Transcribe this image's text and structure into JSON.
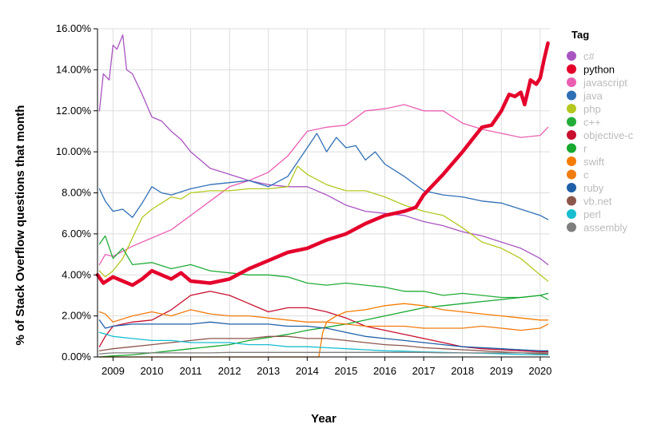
{
  "chart_data": {
    "type": "line",
    "title": "",
    "xlabel": "Year",
    "ylabel": "% of Stack Overflow questions that month",
    "xlim": [
      2008.6,
      2020.25
    ],
    "ylim": [
      0,
      16
    ],
    "x_ticks": [
      2009,
      2010,
      2011,
      2012,
      2013,
      2014,
      2015,
      2016,
      2017,
      2018,
      2019,
      2020
    ],
    "x_tick_labels": [
      "2009",
      "2010",
      "2011",
      "2012",
      "2013",
      "2014",
      "2015",
      "2016",
      "2017",
      "2018",
      "2019",
      "2020"
    ],
    "y_ticks": [
      0,
      2,
      4,
      6,
      8,
      10,
      12,
      14,
      16
    ],
    "y_tick_labels": [
      "0.00%",
      "2.00%",
      "4.00%",
      "6.00%",
      "8.00%",
      "10.00%",
      "12.00%",
      "14.00%",
      "16.00%"
    ],
    "grid": true,
    "legend": {
      "title": "Tag",
      "position": "right",
      "highlighted": "python"
    },
    "series": [
      {
        "name": "c#",
        "color": "#a855c0",
        "x": [
          2008.65,
          2008.75,
          2008.9,
          2009.0,
          2009.1,
          2009.25,
          2009.35,
          2009.5,
          2009.75,
          2010.0,
          2010.25,
          2010.5,
          2010.75,
          2011.0,
          2011.5,
          2012.0,
          2012.5,
          2013.0,
          2013.5,
          2014.0,
          2014.5,
          2015.0,
          2015.5,
          2016.0,
          2016.5,
          2017.0,
          2017.5,
          2018.0,
          2018.5,
          2019.0,
          2019.5,
          2020.0,
          2020.2
        ],
        "values": [
          12.0,
          13.8,
          13.5,
          15.2,
          15.0,
          15.7,
          14.0,
          13.8,
          12.8,
          11.7,
          11.5,
          11.0,
          10.6,
          10.0,
          9.2,
          8.9,
          8.6,
          8.4,
          8.3,
          8.3,
          7.9,
          7.4,
          7.1,
          7.0,
          6.9,
          6.6,
          6.4,
          6.1,
          5.9,
          5.6,
          5.3,
          4.8,
          4.5
        ]
      },
      {
        "name": "python",
        "color": "#e4002b",
        "x": [
          2008.6,
          2008.75,
          2009.0,
          2009.25,
          2009.5,
          2009.75,
          2010.0,
          2010.25,
          2010.5,
          2010.75,
          2011.0,
          2011.5,
          2012.0,
          2012.5,
          2013.0,
          2013.5,
          2014.0,
          2014.5,
          2015.0,
          2015.5,
          2016.0,
          2016.5,
          2016.8,
          2017.0,
          2017.5,
          2018.0,
          2018.25,
          2018.5,
          2018.75,
          2019.0,
          2019.2,
          2019.35,
          2019.5,
          2019.6,
          2019.75,
          2019.9,
          2020.0,
          2020.1,
          2020.2
        ],
        "values": [
          4.0,
          3.6,
          3.9,
          3.7,
          3.5,
          3.8,
          4.2,
          4.0,
          3.8,
          4.1,
          3.7,
          3.6,
          3.8,
          4.3,
          4.7,
          5.1,
          5.3,
          5.7,
          6.0,
          6.5,
          6.9,
          7.1,
          7.3,
          7.9,
          8.9,
          10.0,
          10.6,
          11.2,
          11.3,
          12.0,
          12.8,
          12.7,
          12.9,
          12.3,
          13.5,
          13.3,
          13.6,
          14.5,
          15.3
        ]
      },
      {
        "name": "javascript",
        "color": "#ea5fb2",
        "x": [
          2008.65,
          2008.8,
          2009.0,
          2009.5,
          2010.0,
          2010.5,
          2011.0,
          2011.5,
          2012.0,
          2012.5,
          2013.0,
          2013.5,
          2014.0,
          2014.5,
          2015.0,
          2015.5,
          2016.0,
          2016.5,
          2017.0,
          2017.5,
          2018.0,
          2018.5,
          2019.0,
          2019.5,
          2020.0,
          2020.2
        ],
        "values": [
          4.5,
          5.0,
          4.9,
          5.4,
          5.8,
          6.2,
          6.9,
          7.6,
          8.3,
          8.6,
          9.0,
          9.8,
          11.0,
          11.2,
          11.3,
          12.0,
          12.1,
          12.3,
          12.0,
          12.0,
          11.4,
          11.1,
          10.9,
          10.7,
          10.8,
          11.2
        ]
      },
      {
        "name": "java",
        "color": "#2f6fb6",
        "x": [
          2008.65,
          2008.8,
          2009.0,
          2009.25,
          2009.5,
          2009.75,
          2010.0,
          2010.25,
          2010.5,
          2011.0,
          2011.5,
          2012.0,
          2012.5,
          2013.0,
          2013.5,
          2013.75,
          2014.0,
          2014.25,
          2014.5,
          2014.75,
          2015.0,
          2015.25,
          2015.5,
          2015.75,
          2016.0,
          2016.5,
          2017.0,
          2017.5,
          2018.0,
          2018.5,
          2019.0,
          2019.5,
          2020.0,
          2020.2
        ],
        "values": [
          8.2,
          7.6,
          7.1,
          7.2,
          6.8,
          7.5,
          8.3,
          8.0,
          7.9,
          8.2,
          8.4,
          8.5,
          8.6,
          8.3,
          8.8,
          9.5,
          10.2,
          10.9,
          10.0,
          10.7,
          10.2,
          10.3,
          9.6,
          10.0,
          9.4,
          8.8,
          8.1,
          7.9,
          7.8,
          7.6,
          7.5,
          7.2,
          6.9,
          6.7
        ]
      },
      {
        "name": "php",
        "color": "#b5c81f",
        "x": [
          2008.65,
          2008.8,
          2009.0,
          2009.25,
          2009.5,
          2009.75,
          2010.0,
          2010.25,
          2010.5,
          2010.75,
          2011.0,
          2011.5,
          2012.0,
          2012.5,
          2013.0,
          2013.5,
          2013.75,
          2014.0,
          2014.5,
          2015.0,
          2015.5,
          2016.0,
          2016.5,
          2017.0,
          2017.5,
          2018.0,
          2018.5,
          2019.0,
          2019.5,
          2020.0,
          2020.2
        ],
        "values": [
          4.2,
          3.9,
          4.2,
          4.8,
          5.8,
          6.8,
          7.2,
          7.5,
          7.8,
          7.7,
          8.0,
          8.1,
          8.1,
          8.2,
          8.2,
          8.3,
          9.3,
          8.9,
          8.4,
          8.1,
          8.1,
          7.8,
          7.4,
          7.1,
          6.9,
          6.3,
          5.6,
          5.3,
          4.8,
          4.0,
          3.7
        ]
      },
      {
        "name": "c++",
        "color": "#22ac38",
        "x": [
          2008.65,
          2008.8,
          2009.0,
          2009.25,
          2009.5,
          2010.0,
          2010.5,
          2011.0,
          2011.5,
          2012.0,
          2012.5,
          2013.0,
          2013.5,
          2014.0,
          2014.5,
          2015.0,
          2015.5,
          2016.0,
          2016.5,
          2017.0,
          2017.5,
          2018.0,
          2018.5,
          2019.0,
          2019.5,
          2020.0,
          2020.2
        ],
        "values": [
          5.5,
          5.9,
          4.8,
          5.3,
          4.5,
          4.6,
          4.3,
          4.5,
          4.2,
          4.1,
          4.0,
          4.0,
          3.9,
          3.6,
          3.5,
          3.6,
          3.5,
          3.4,
          3.2,
          3.2,
          3.0,
          3.1,
          3.0,
          2.9,
          2.9,
          3.0,
          2.8
        ]
      },
      {
        "name": "objective-c",
        "color": "#c8102e",
        "x": [
          2008.65,
          2008.8,
          2009.0,
          2009.5,
          2010.0,
          2010.5,
          2011.0,
          2011.5,
          2012.0,
          2012.5,
          2013.0,
          2013.5,
          2014.0,
          2014.5,
          2015.0,
          2015.5,
          2016.0,
          2016.5,
          2017.0,
          2017.5,
          2018.0,
          2018.5,
          2019.0,
          2019.5,
          2020.0,
          2020.2
        ],
        "values": [
          0.5,
          1.0,
          1.5,
          1.7,
          1.8,
          2.3,
          3.0,
          3.2,
          3.0,
          2.6,
          2.2,
          2.4,
          2.4,
          2.2,
          1.9,
          1.5,
          1.3,
          1.1,
          0.9,
          0.7,
          0.5,
          0.4,
          0.35,
          0.3,
          0.25,
          0.25
        ]
      },
      {
        "name": "r",
        "color": "#17a82f",
        "x": [
          2008.65,
          2009.0,
          2009.5,
          2010.0,
          2010.5,
          2011.0,
          2011.5,
          2012.0,
          2012.5,
          2013.0,
          2013.5,
          2014.0,
          2014.5,
          2015.0,
          2015.5,
          2016.0,
          2016.5,
          2017.0,
          2017.5,
          2018.0,
          2018.5,
          2019.0,
          2019.5,
          2020.0,
          2020.2
        ],
        "values": [
          0.0,
          0.05,
          0.1,
          0.2,
          0.3,
          0.4,
          0.5,
          0.6,
          0.8,
          0.95,
          1.1,
          1.3,
          1.45,
          1.6,
          1.8,
          2.0,
          2.2,
          2.4,
          2.5,
          2.6,
          2.7,
          2.8,
          2.9,
          3.0,
          3.1
        ]
      },
      {
        "name": "swift",
        "color": "#f57c00",
        "x": [
          2008.65,
          2014.3,
          2014.4,
          2014.5,
          2014.75,
          2015.0,
          2015.5,
          2016.0,
          2016.5,
          2017.0,
          2017.5,
          2018.0,
          2018.5,
          2019.0,
          2019.5,
          2020.0,
          2020.2
        ],
        "values": [
          0.0,
          0.0,
          1.2,
          1.7,
          2.0,
          2.2,
          2.3,
          2.5,
          2.6,
          2.5,
          2.3,
          2.2,
          2.1,
          2.0,
          1.9,
          1.8,
          1.8
        ]
      },
      {
        "name": "c",
        "color": "#f07c10",
        "x": [
          2008.65,
          2008.8,
          2009.0,
          2009.5,
          2010.0,
          2010.5,
          2011.0,
          2011.5,
          2012.0,
          2012.5,
          2013.0,
          2013.5,
          2014.0,
          2014.5,
          2015.0,
          2015.5,
          2016.0,
          2016.5,
          2017.0,
          2017.5,
          2018.0,
          2018.5,
          2019.0,
          2019.5,
          2020.0,
          2020.2
        ],
        "values": [
          2.2,
          2.1,
          1.7,
          2.0,
          2.2,
          2.0,
          2.3,
          2.1,
          2.0,
          2.0,
          1.9,
          1.8,
          1.7,
          1.7,
          1.6,
          1.5,
          1.5,
          1.5,
          1.4,
          1.4,
          1.4,
          1.5,
          1.4,
          1.3,
          1.4,
          1.6
        ]
      },
      {
        "name": "ruby",
        "color": "#1f5fa8",
        "x": [
          2008.65,
          2008.8,
          2009.0,
          2009.5,
          2010.0,
          2010.5,
          2011.0,
          2011.5,
          2012.0,
          2012.5,
          2013.0,
          2013.5,
          2014.0,
          2014.5,
          2015.0,
          2015.5,
          2016.0,
          2016.5,
          2017.0,
          2017.5,
          2018.0,
          2018.5,
          2019.0,
          2019.5,
          2020.0,
          2020.2
        ],
        "values": [
          1.8,
          1.4,
          1.5,
          1.6,
          1.6,
          1.6,
          1.6,
          1.7,
          1.6,
          1.6,
          1.6,
          1.5,
          1.5,
          1.4,
          1.2,
          1.0,
          0.9,
          0.8,
          0.7,
          0.6,
          0.5,
          0.45,
          0.4,
          0.35,
          0.3,
          0.3
        ]
      },
      {
        "name": "vb.net",
        "color": "#8c564b",
        "x": [
          2008.65,
          2009.0,
          2009.5,
          2010.0,
          2010.5,
          2011.0,
          2011.5,
          2012.0,
          2012.5,
          2013.0,
          2013.5,
          2014.0,
          2014.5,
          2015.0,
          2015.5,
          2016.0,
          2016.5,
          2017.0,
          2017.5,
          2018.0,
          2018.5,
          2019.0,
          2019.5,
          2020.0,
          2020.2
        ],
        "values": [
          0.3,
          0.4,
          0.5,
          0.6,
          0.7,
          0.8,
          0.9,
          0.9,
          0.9,
          1.0,
          1.0,
          0.9,
          0.9,
          0.8,
          0.7,
          0.6,
          0.55,
          0.45,
          0.4,
          0.35,
          0.3,
          0.25,
          0.2,
          0.15,
          0.15
        ]
      },
      {
        "name": "perl",
        "color": "#17becf",
        "x": [
          2008.65,
          2009.0,
          2009.5,
          2010.0,
          2010.5,
          2011.0,
          2011.5,
          2012.0,
          2012.5,
          2013.0,
          2013.5,
          2014.0,
          2014.5,
          2015.0,
          2015.5,
          2016.0,
          2016.5,
          2017.0,
          2017.5,
          2018.0,
          2018.5,
          2019.0,
          2019.5,
          2020.0,
          2020.2
        ],
        "values": [
          1.2,
          1.0,
          0.9,
          0.8,
          0.8,
          0.7,
          0.7,
          0.7,
          0.6,
          0.6,
          0.5,
          0.5,
          0.45,
          0.4,
          0.35,
          0.3,
          0.28,
          0.25,
          0.22,
          0.2,
          0.18,
          0.15,
          0.12,
          0.1,
          0.1
        ]
      },
      {
        "name": "assembly",
        "color": "#7f7f7f",
        "x": [
          2008.65,
          2009.0,
          2009.5,
          2010.0,
          2010.5,
          2011.0,
          2011.5,
          2012.0,
          2012.5,
          2013.0,
          2013.5,
          2014.0,
          2014.5,
          2015.0,
          2015.5,
          2016.0,
          2016.5,
          2017.0,
          2017.5,
          2018.0,
          2018.5,
          2019.0,
          2019.5,
          2020.0,
          2020.2
        ],
        "values": [
          0.15,
          0.2,
          0.2,
          0.2,
          0.2,
          0.2,
          0.2,
          0.22,
          0.22,
          0.22,
          0.22,
          0.22,
          0.22,
          0.22,
          0.22,
          0.22,
          0.22,
          0.22,
          0.2,
          0.2,
          0.2,
          0.2,
          0.2,
          0.2,
          0.2
        ]
      }
    ]
  }
}
